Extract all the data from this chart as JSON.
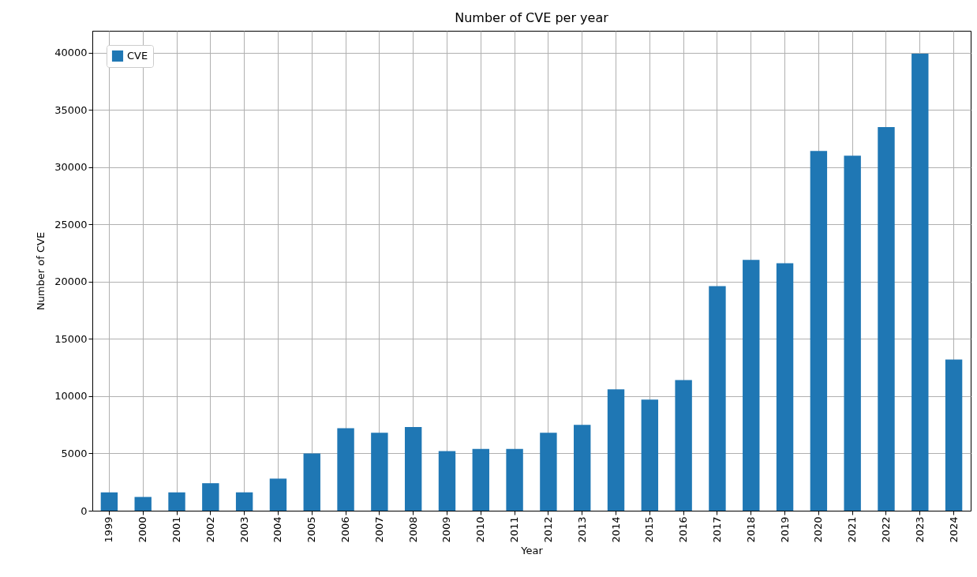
{
  "chart_data": {
    "type": "bar",
    "title": "Number of CVE per year",
    "xlabel": "Year",
    "ylabel": "Number of CVE",
    "categories": [
      "1999",
      "2000",
      "2001",
      "2002",
      "2003",
      "2004",
      "2005",
      "2006",
      "2007",
      "2008",
      "2009",
      "2010",
      "2011",
      "2012",
      "2013",
      "2014",
      "2015",
      "2016",
      "2017",
      "2018",
      "2019",
      "2020",
      "2021",
      "2022",
      "2023",
      "2024"
    ],
    "series": [
      {
        "name": "CVE",
        "color": "#1f77b4",
        "values": [
          1600,
          1200,
          1600,
          2400,
          1600,
          2800,
          5000,
          7200,
          6800,
          7300,
          5200,
          5400,
          5400,
          6800,
          7500,
          10600,
          9700,
          11400,
          19600,
          21900,
          21600,
          31400,
          31000,
          33500,
          39900,
          13200
        ]
      }
    ],
    "ylim": [
      0,
      41900
    ],
    "yticks": [
      0,
      5000,
      10000,
      15000,
      20000,
      25000,
      30000,
      35000,
      40000
    ],
    "grid": true,
    "legend": "top left"
  }
}
